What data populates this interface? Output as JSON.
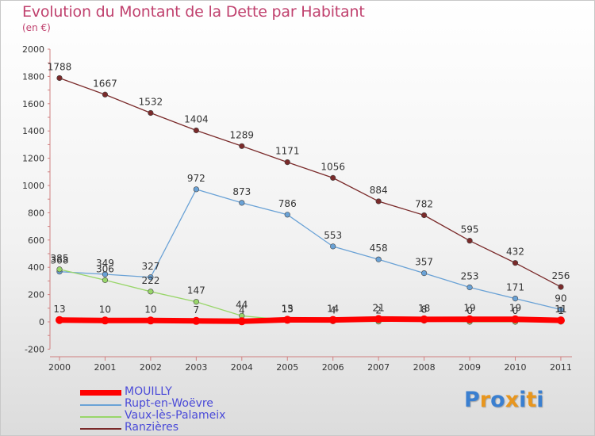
{
  "title": "Evolution du Montant de la Dette par Habitant",
  "subtitle": "(en €)",
  "logo": {
    "text": "Proxiti",
    "letters": [
      {
        "ch": "P",
        "color": "#3a7fd0"
      },
      {
        "ch": "r",
        "color": "#e8961e"
      },
      {
        "ch": "o",
        "color": "#3a7fd0"
      },
      {
        "ch": "x",
        "color": "#e8961e"
      },
      {
        "ch": "i",
        "color": "#3a7fd0"
      },
      {
        "ch": "t",
        "color": "#e8961e"
      },
      {
        "ch": "i",
        "color": "#3a7fd0"
      }
    ]
  },
  "chart_data": {
    "type": "line",
    "title": "Evolution du Montant de la Dette par Habitant",
    "subtitle": "(en €)",
    "x": [
      "2000",
      "2001",
      "2002",
      "2003",
      "2004",
      "2005",
      "2006",
      "2007",
      "2008",
      "2009",
      "2010",
      "2011"
    ],
    "ylim": [
      -200,
      2000
    ],
    "yticks": [
      "-200",
      "0",
      "200",
      "400",
      "600",
      "800",
      "1000",
      "1200",
      "1400",
      "1600",
      "1800",
      "2000"
    ],
    "grid": false,
    "legend_position": "bottom-left",
    "series": [
      {
        "name": "MOUILLY",
        "color": "#ff0000",
        "values": [
          13,
          10,
          10,
          7,
          4,
          15,
          14,
          21,
          18,
          19,
          19,
          11
        ],
        "labels": [
          "13",
          "10",
          "10",
          "7",
          "4",
          "15",
          "14",
          "21",
          "18",
          "19",
          "19",
          "11"
        ]
      },
      {
        "name": "Rupt-en-Woëvre",
        "color": "#6aa2d6",
        "values": [
          368,
          349,
          327,
          972,
          873,
          786,
          553,
          458,
          357,
          253,
          171,
          90
        ],
        "labels": [
          "368",
          "349",
          "327",
          "972",
          "873",
          "786",
          "553",
          "458",
          "357",
          "253",
          "171",
          "90"
        ]
      },
      {
        "name": "Vaux-lès-Palameix",
        "color": "#99d66a",
        "values": [
          385,
          306,
          222,
          147,
          44,
          13,
          4,
          2,
          8,
          0,
          0,
          1
        ],
        "labels": [
          "385",
          "306",
          "222",
          "147",
          "44",
          "13",
          "4",
          "2",
          "8",
          "0",
          "0",
          "1"
        ]
      },
      {
        "name": "Ranzières",
        "color": "#7a2a2a",
        "values": [
          1788,
          1667,
          1532,
          1404,
          1289,
          1171,
          1056,
          884,
          782,
          595,
          432,
          256
        ],
        "labels": [
          "1788",
          "1667",
          "1532",
          "1404",
          "1289",
          "1171",
          "1056",
          "884",
          "782",
          "595",
          "432",
          "256"
        ]
      }
    ]
  }
}
